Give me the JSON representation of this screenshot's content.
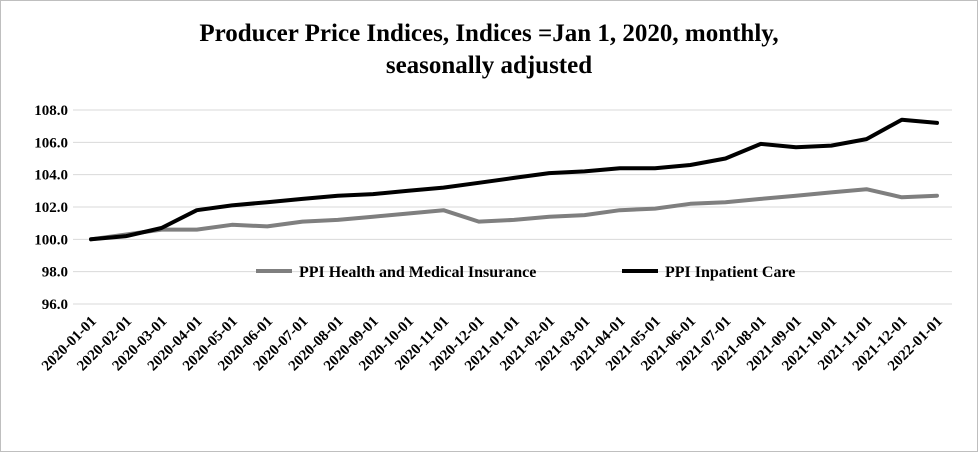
{
  "chart_data": {
    "type": "line",
    "title_line1": "Producer Price Indices, Indices =Jan 1, 2020, monthly,",
    "title_line2": "seasonally adjusted",
    "xlabel": "",
    "ylabel": "",
    "ylim": [
      96.0,
      108.0
    ],
    "y_ticks": [
      "96.0",
      "98.0",
      "100.0",
      "102.0",
      "104.0",
      "106.0",
      "108.0"
    ],
    "grid": true,
    "legend_position": "center",
    "categories": [
      "2020-01-01",
      "2020-02-01",
      "2020-03-01",
      "2020-04-01",
      "2020-05-01",
      "2020-06-01",
      "2020-07-01",
      "2020-08-01",
      "2020-09-01",
      "2020-10-01",
      "2020-11-01",
      "2020-12-01",
      "2021-01-01",
      "2021-02-01",
      "2021-03-01",
      "2021-04-01",
      "2021-05-01",
      "2021-06-01",
      "2021-07-01",
      "2021-08-01",
      "2021-09-01",
      "2021-10-01",
      "2021-11-01",
      "2021-12-01",
      "2022-01-01"
    ],
    "series": [
      {
        "name": "PPI Health and Medical Insurance",
        "color": "#7f7f7f",
        "values": [
          100.0,
          100.3,
          100.6,
          100.6,
          100.9,
          100.8,
          101.1,
          101.2,
          101.4,
          101.6,
          101.8,
          101.1,
          101.2,
          101.4,
          101.5,
          101.8,
          101.9,
          102.2,
          102.3,
          102.5,
          102.7,
          102.9,
          103.1,
          102.6,
          102.7
        ]
      },
      {
        "name": "PPI Inpatient Care",
        "color": "#000000",
        "values": [
          100.0,
          100.2,
          100.7,
          101.8,
          102.1,
          102.3,
          102.5,
          102.7,
          102.8,
          103.0,
          103.2,
          103.5,
          103.8,
          104.1,
          104.2,
          104.4,
          104.4,
          104.6,
          105.0,
          105.9,
          105.7,
          105.8,
          106.2,
          107.4,
          107.2
        ]
      }
    ]
  }
}
